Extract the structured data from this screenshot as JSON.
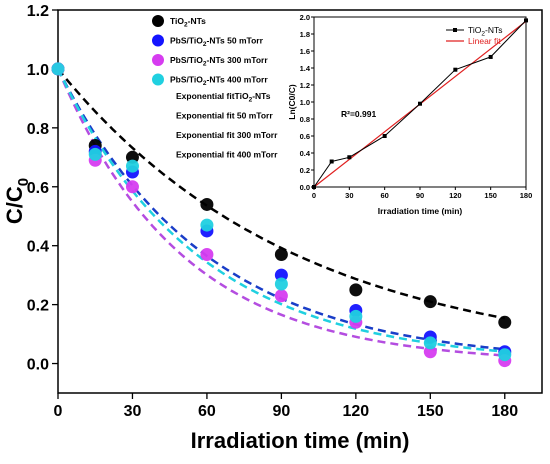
{
  "chart_data": [
    {
      "type": "scatter",
      "title": "",
      "xlabel": "Irradiation time (min)",
      "ylabel_main": "C/C",
      "ylabel_sub": "0",
      "xlim": [
        0,
        195
      ],
      "ylim": [
        -0.1,
        1.2
      ],
      "xticks": [
        0,
        30,
        60,
        90,
        120,
        150,
        180
      ],
      "yticks": [
        0.0,
        0.2,
        0.4,
        0.6,
        0.8,
        1.0,
        1.2
      ],
      "grid": false,
      "legend_position": "top-left",
      "x": [
        0,
        15,
        30,
        60,
        90,
        120,
        150,
        180
      ],
      "series": [
        {
          "name": "TiO2-NTs",
          "name_parts": [
            "TiO",
            "2",
            "-NTs"
          ],
          "color": "#000000",
          "values": [
            1.0,
            0.74,
            0.7,
            0.54,
            0.37,
            0.25,
            0.21,
            0.14
          ]
        },
        {
          "name": "PbS/TiO2-NTs 50 mTorr",
          "name_parts": [
            "PbS/TiO",
            "2",
            "-NTs 50 mTorr"
          ],
          "color": "#1414ff",
          "values": [
            1.0,
            0.72,
            0.65,
            0.45,
            0.3,
            0.18,
            0.09,
            0.04
          ]
        },
        {
          "name": "PbS/TiO2-NTs 300 mTorr",
          "name_parts": [
            "PbS/TiO",
            "2",
            "-NTs 300 mTorr"
          ],
          "color": "#d63cf0",
          "values": [
            1.0,
            0.69,
            0.6,
            0.37,
            0.23,
            0.14,
            0.04,
            0.01
          ]
        },
        {
          "name": "PbS/TiO2-NTs 400 mTorr",
          "name_parts": [
            "PbS/TiO",
            "2",
            "-NTs 400 mTorr"
          ],
          "color": "#20d0e0",
          "values": [
            1.0,
            0.71,
            0.67,
            0.47,
            0.27,
            0.16,
            0.07,
            0.03
          ]
        }
      ],
      "fits": [
        {
          "name": "Exponential fitTiO2-NTs",
          "color": "#000000",
          "k": 0.0104
        },
        {
          "name": "Exponential fit 50 mTorr",
          "color": "#1a3ec8",
          "k": 0.0168
        },
        {
          "name": "Exponential fit 300 mTorr",
          "color": "#b44de0",
          "k": 0.02
        },
        {
          "name": "Exponential fit 400 mTorr",
          "color": "#20d0e0",
          "k": 0.0178
        }
      ]
    },
    {
      "type": "line",
      "title": "",
      "xlabel": "Irradiation time (min)",
      "ylabel": "Ln(C0/C)",
      "xlim": [
        0,
        180
      ],
      "ylim": [
        0,
        2.0
      ],
      "xticks": [
        0,
        30,
        60,
        90,
        120,
        150,
        180
      ],
      "yticks": [
        0.0,
        0.2,
        0.4,
        0.6,
        0.8,
        1.0,
        1.2,
        1.4,
        1.6,
        1.8,
        2.0
      ],
      "legend_position": "top-right",
      "annotation": "R²=0.991",
      "series": [
        {
          "name": "TiO2-NTs",
          "name_parts": [
            "TiO",
            "2",
            "-NTs"
          ],
          "color": "#000000",
          "x": [
            0,
            15,
            30,
            60,
            90,
            120,
            150,
            180
          ],
          "values": [
            0.0,
            0.3,
            0.35,
            0.6,
            0.98,
            1.38,
            1.53,
            1.96
          ]
        },
        {
          "name": "Linear fit",
          "color": "#e02020",
          "x": [
            0,
            180
          ],
          "values": [
            0.0,
            1.95
          ]
        }
      ]
    }
  ]
}
